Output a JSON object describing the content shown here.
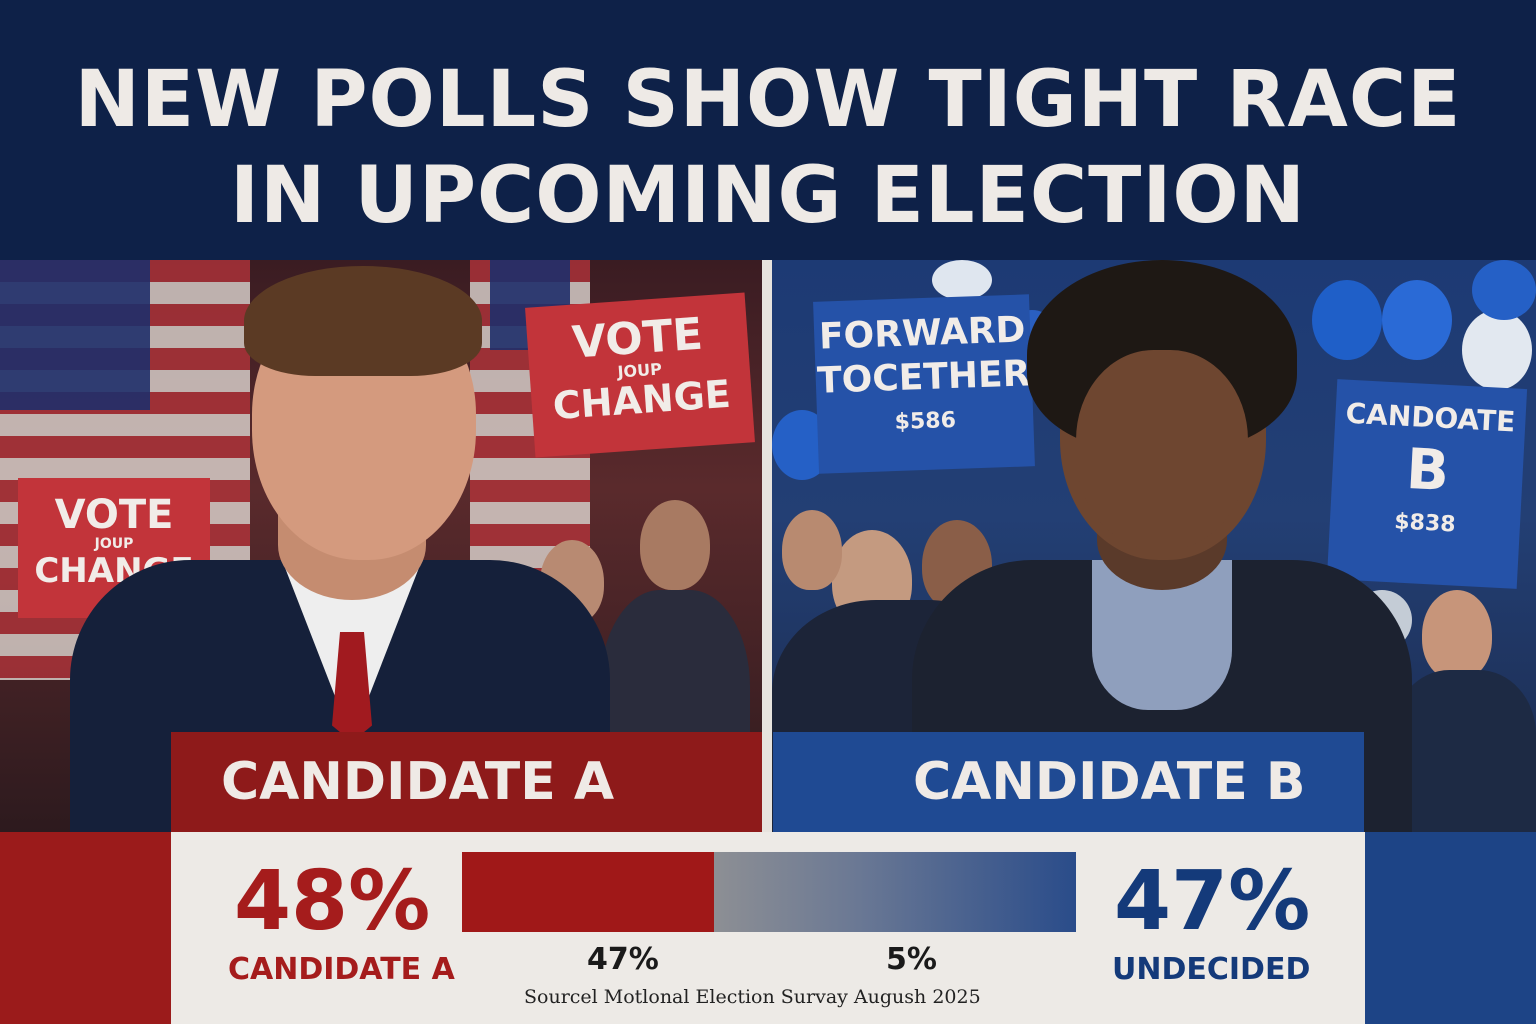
{
  "headline": {
    "line1": "NEW POLLS SHOW TIGHT RACE",
    "line2": "IN UPCOMING ELECTION"
  },
  "panel_a": {
    "signs": [
      {
        "line1": "VOTE",
        "line2": "JOUP",
        "line3": "CHANGE"
      },
      {
        "line1": "VOTE",
        "line2": "JOUP",
        "line3": "CHANGE"
      }
    ],
    "name": "CANDIDATE A",
    "accent_color": "#8e1a1a"
  },
  "panel_b": {
    "signs": [
      {
        "line1": "FORWARD",
        "line2": "TOCETHER",
        "line3": "$586"
      },
      {
        "line1": "CANDOATE",
        "line2": "B",
        "line3": "$838"
      }
    ],
    "name": "CANDIDATE B",
    "accent_color": "#1f4a93"
  },
  "stats": {
    "left_pct": "48%",
    "left_label": "CANDIDATE A",
    "right_pct": "47%",
    "right_label": "UNDECIDED",
    "bar_sub_left": "47%",
    "bar_sub_right": "5%",
    "bar_fraction_red": 0.41,
    "bar_fraction_blue": 0.59,
    "source": "Sourcel Motlonal Election Survay Augush 2025"
  }
}
